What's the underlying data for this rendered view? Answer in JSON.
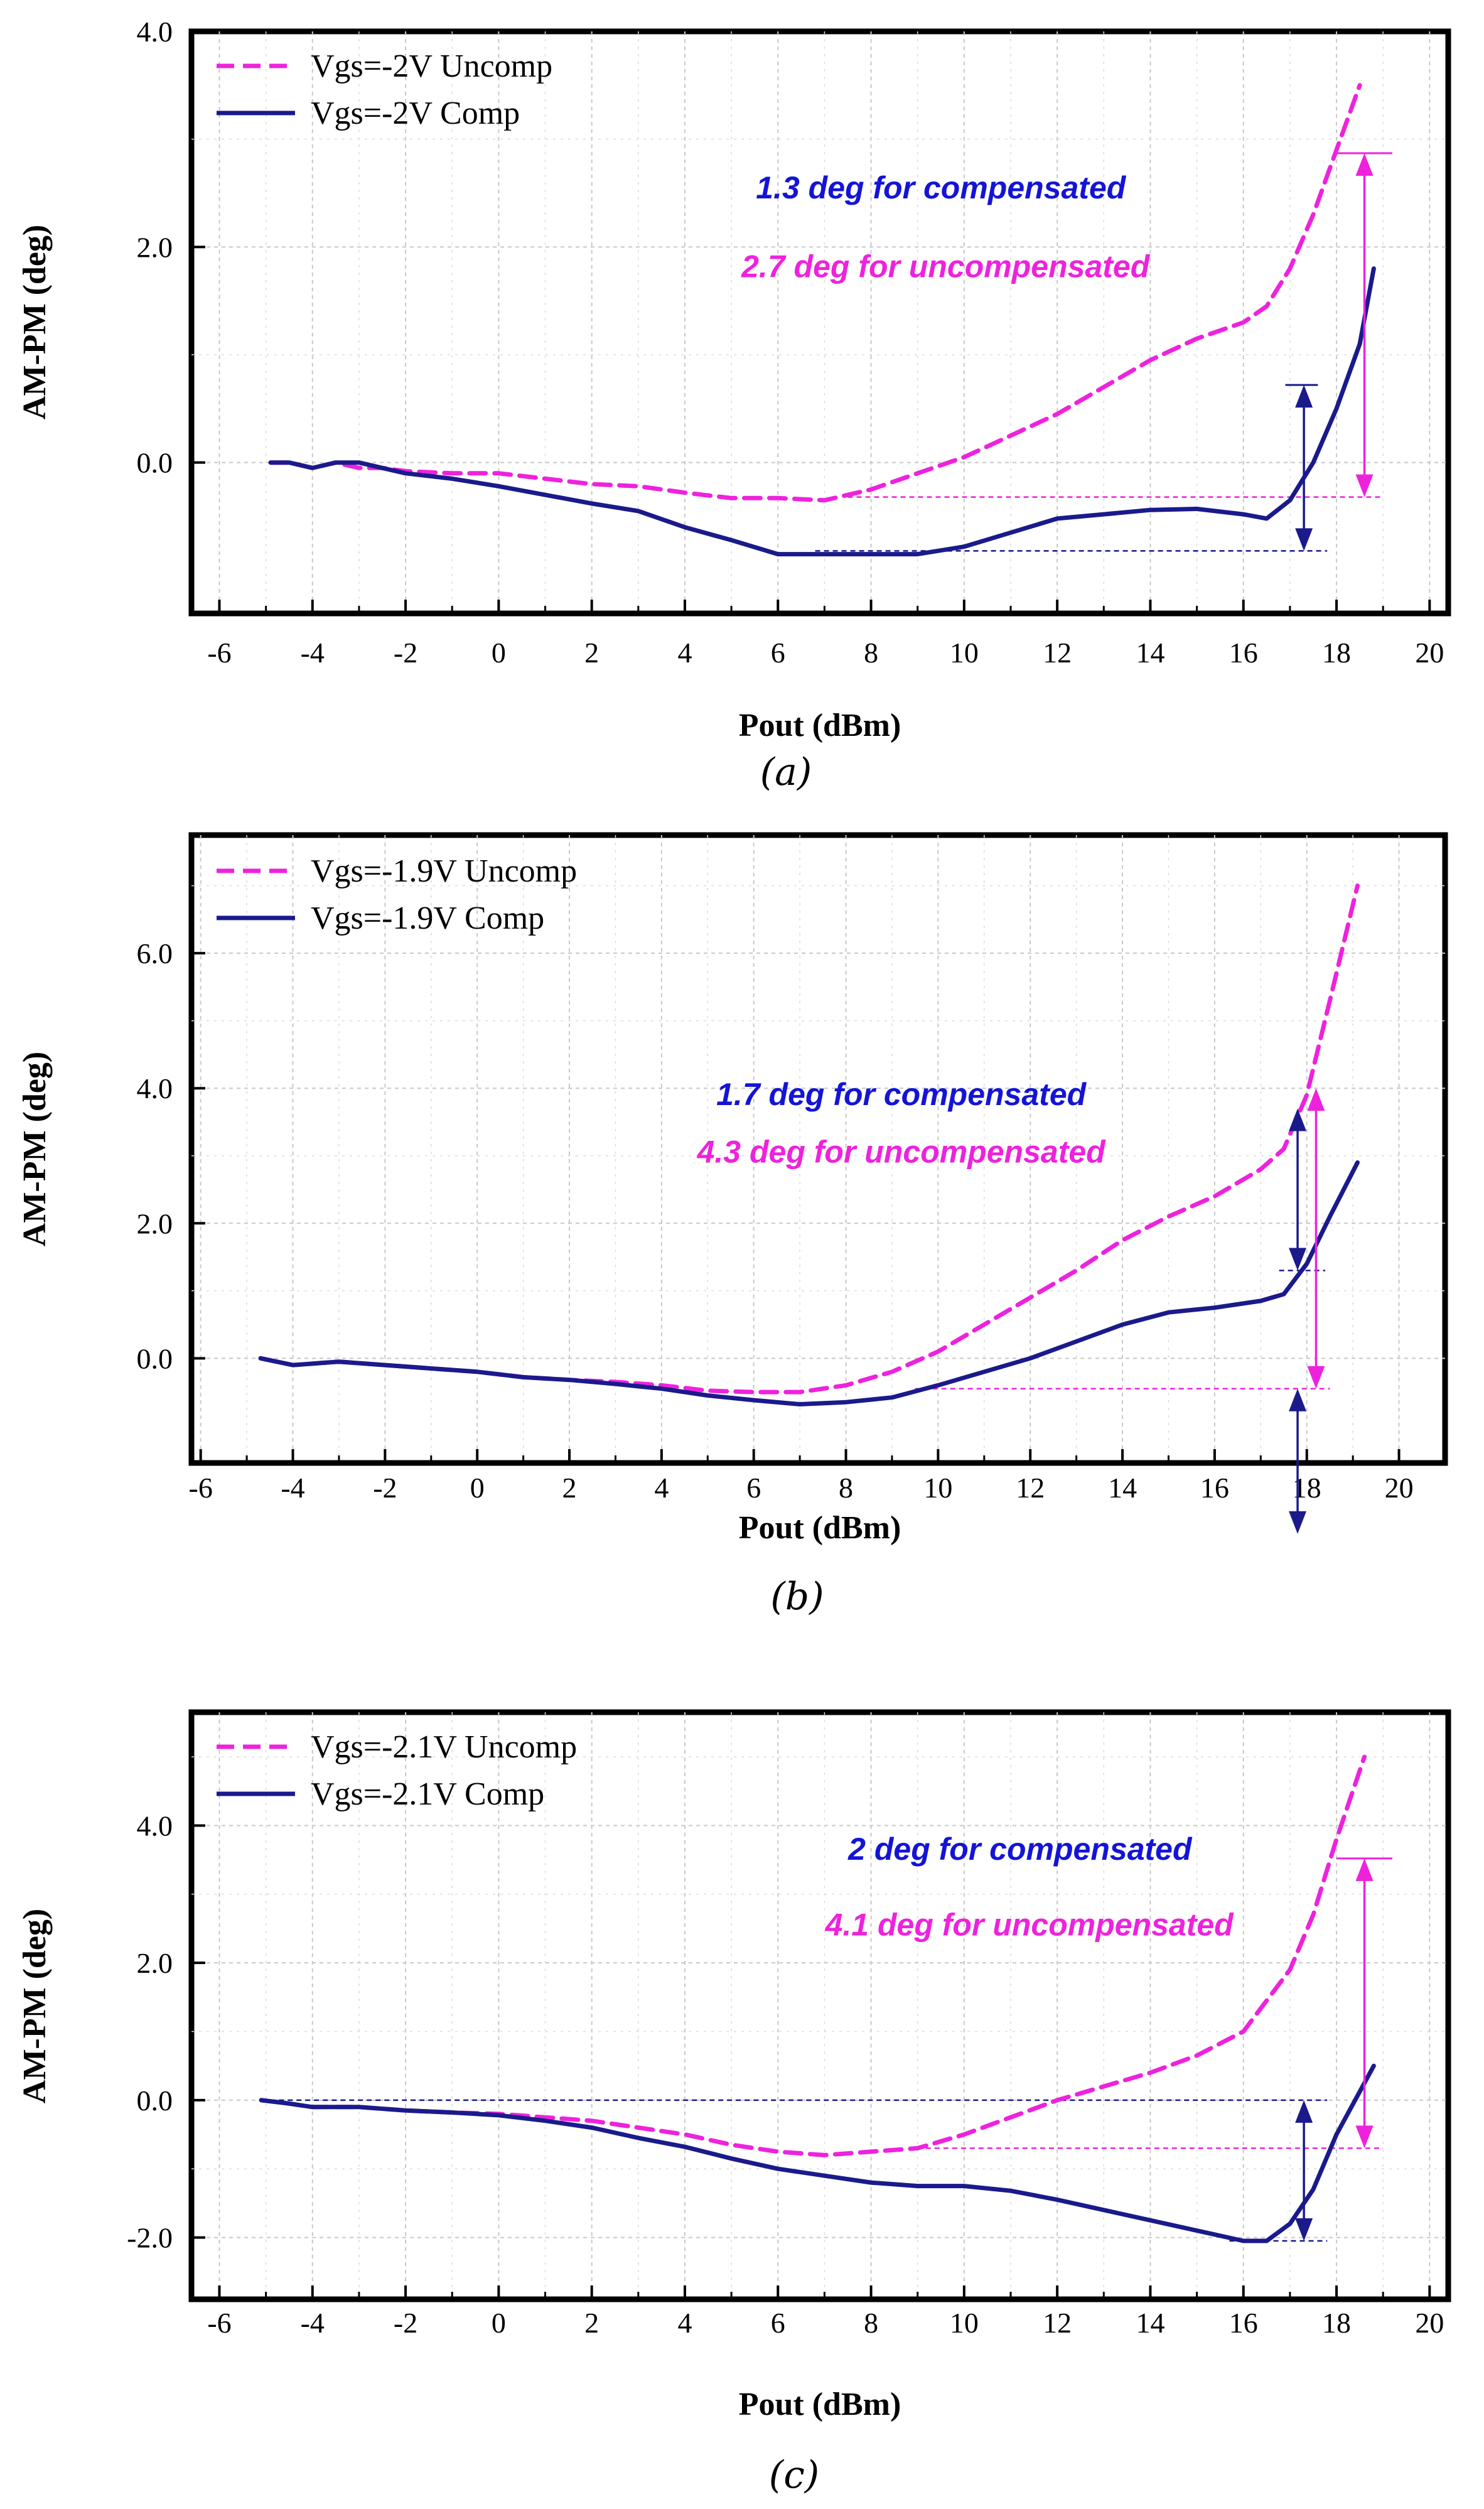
{
  "chart_data": [
    {
      "type": "line",
      "caption": "(a)",
      "xlabel": "Pout (dBm)",
      "ylabel": "AM-PM (deg)",
      "xlim": [
        -6.6,
        20.4
      ],
      "ylim": [
        -1.4,
        4.0
      ],
      "xticks": [
        -6,
        -4,
        -2,
        0,
        2,
        4,
        6,
        8,
        10,
        12,
        14,
        16,
        18,
        20
      ],
      "xtick_labels": [
        "-6",
        "-4",
        "-2",
        "0",
        "2",
        "4",
        "6",
        "8",
        "10",
        "12",
        "14",
        "16",
        "18",
        "20"
      ],
      "yticks": [
        0.0,
        2.0,
        4.0
      ],
      "ytick_labels": [
        "0.0",
        "2.0",
        "4.0"
      ],
      "grid": true,
      "legend_position": "top-left",
      "colors": {
        "uncomp": "#ee22dd",
        "comp": "#1a1a8c",
        "annot_comp": "#1414d6",
        "annot_uncomp": "#ee22dd"
      },
      "series": [
        {
          "name": "Vgs=-2V Uncomp",
          "style": "dashed",
          "x": [
            -4.9,
            -4.5,
            -4,
            -3.5,
            -3,
            -2.5,
            -2,
            -1,
            0,
            1,
            2,
            3,
            4,
            5,
            6,
            7,
            8,
            9,
            10,
            11,
            12,
            13,
            14,
            15,
            16,
            16.5,
            17,
            17.5,
            18,
            18.5
          ],
          "y": [
            0.0,
            0.0,
            -0.05,
            0.0,
            -0.05,
            -0.05,
            -0.08,
            -0.1,
            -0.1,
            -0.15,
            -0.2,
            -0.22,
            -0.28,
            -0.33,
            -0.33,
            -0.35,
            -0.25,
            -0.1,
            0.05,
            0.25,
            0.45,
            0.7,
            0.95,
            1.15,
            1.3,
            1.45,
            1.8,
            2.3,
            2.9,
            3.5
          ]
        },
        {
          "name": "Vgs=-2V Comp",
          "style": "solid",
          "x": [
            -4.9,
            -4.5,
            -4,
            -3.5,
            -3,
            -2.5,
            -2,
            -1,
            0,
            1,
            2,
            3,
            4,
            5,
            6,
            7,
            8,
            9,
            10,
            11,
            12,
            13,
            14,
            15,
            16,
            16.5,
            17,
            17.5,
            18,
            18.5,
            18.8
          ],
          "y": [
            0.0,
            0.0,
            -0.05,
            0.0,
            0.0,
            -0.05,
            -0.1,
            -0.15,
            -0.22,
            -0.3,
            -0.38,
            -0.45,
            -0.6,
            -0.72,
            -0.85,
            -0.85,
            -0.85,
            -0.85,
            -0.78,
            -0.65,
            -0.52,
            -0.48,
            -0.44,
            -0.43,
            -0.48,
            -0.52,
            -0.35,
            0.0,
            0.5,
            1.1,
            1.8
          ]
        }
      ],
      "ref_lines": [
        {
          "color": "comp",
          "y": -0.82,
          "x_from": 6.8,
          "x_to": 17.8
        },
        {
          "color": "uncomp",
          "y": -0.32,
          "x_from": 7.5,
          "x_to": 19.0
        }
      ],
      "arrows": [
        {
          "color": "comp",
          "x": 17.3,
          "y_from": -0.82,
          "y_to": 0.72,
          "cap_x_from": 16.9,
          "cap_x_to": 17.6
        },
        {
          "color": "uncomp",
          "x": 18.6,
          "y_from": -0.32,
          "y_to": 2.87,
          "cap_x_from": 18.0,
          "cap_x_to": 19.2
        }
      ],
      "annotations": [
        {
          "text": "1.3 deg for compensated",
          "color": "annot_comp",
          "x": 9.5,
          "y": 2.45
        },
        {
          "text": "2.7 deg for uncompensated",
          "color": "annot_uncomp",
          "x": 9.6,
          "y": 1.72
        }
      ]
    },
    {
      "type": "line",
      "caption": "(b)",
      "xlabel": "Pout (dBm)",
      "ylabel": "AM-PM (deg)",
      "xlim": [
        -6.2,
        21.0
      ],
      "ylim": [
        -1.55,
        7.75
      ],
      "xticks": [
        -6,
        -4,
        -2,
        0,
        2,
        4,
        6,
        8,
        10,
        12,
        14,
        16,
        18,
        20
      ],
      "xtick_labels": [
        "-6",
        "-4",
        "-2",
        "0",
        "2",
        "4",
        "6",
        "8",
        "10",
        "12",
        "14",
        "16",
        "18",
        "20"
      ],
      "yticks": [
        0.0,
        2.0,
        4.0,
        6.0
      ],
      "ytick_labels": [
        "0.0",
        "2.0",
        "4.0",
        "6.0"
      ],
      "grid": true,
      "legend_position": "top-left",
      "colors": {
        "uncomp": "#ee22dd",
        "comp": "#1a1a8c",
        "annot_comp": "#1414d6",
        "annot_uncomp": "#ee22dd"
      },
      "series": [
        {
          "name": "Vgs=-1.9V Uncomp",
          "style": "dashed",
          "x": [
            -4.7,
            -4,
            -3,
            -2,
            -1,
            0,
            1,
            2,
            3,
            4,
            5,
            6,
            7,
            8,
            9,
            10,
            11,
            12,
            13,
            14,
            15,
            16,
            17,
            17.5,
            18,
            18.5,
            19.1
          ],
          "y": [
            0.0,
            -0.1,
            -0.05,
            -0.1,
            -0.15,
            -0.2,
            -0.28,
            -0.32,
            -0.35,
            -0.4,
            -0.48,
            -0.5,
            -0.5,
            -0.4,
            -0.2,
            0.1,
            0.5,
            0.9,
            1.3,
            1.75,
            2.1,
            2.4,
            2.8,
            3.1,
            3.9,
            5.3,
            7.0
          ]
        },
        {
          "name": "Vgs=-1.9V Comp",
          "style": "solid",
          "x": [
            -4.7,
            -4,
            -3,
            -2,
            -1,
            0,
            1,
            2,
            3,
            4,
            5,
            6,
            7,
            8,
            9,
            10,
            11,
            12,
            13,
            14,
            15,
            16,
            17,
            17.5,
            18,
            18.5,
            19.1
          ],
          "y": [
            0.0,
            -0.1,
            -0.05,
            -0.1,
            -0.15,
            -0.2,
            -0.28,
            -0.32,
            -0.38,
            -0.45,
            -0.55,
            -0.62,
            -0.68,
            -0.65,
            -0.58,
            -0.4,
            -0.2,
            0.0,
            0.25,
            0.5,
            0.68,
            0.75,
            0.85,
            0.95,
            1.4,
            2.1,
            2.9
          ]
        }
      ],
      "ref_lines": [
        {
          "color": "comp",
          "y": 1.3,
          "x_from": 17.4,
          "x_to": 18.4
        },
        {
          "color": "uncomp",
          "y": -0.45,
          "x_from": 9.5,
          "x_to": 18.5
        }
      ],
      "arrows": [
        {
          "color": "comp",
          "x": 17.8,
          "y_from": 1.3,
          "y_to": 3.7,
          "cap_x_from": null,
          "cap_x_to": null
        },
        {
          "color": "uncomp",
          "x": 18.2,
          "y_from": -0.45,
          "y_to": 4.0,
          "cap_x_from": null,
          "cap_x_to": null
        },
        {
          "color": "comp",
          "x": 17.8,
          "y_from": -2.6,
          "y_to": -0.45,
          "cap_x_from": null,
          "cap_x_to": null
        }
      ],
      "annotations": [
        {
          "text": "1.7 deg for compensated",
          "color": "annot_comp",
          "x": 9.2,
          "y": 3.75
        },
        {
          "text": "4.3 deg for uncompensated",
          "color": "annot_uncomp",
          "x": 9.2,
          "y": 2.9
        }
      ]
    },
    {
      "type": "line",
      "caption": "(c)",
      "xlabel": "Pout (dBm)",
      "ylabel": "AM-PM (deg)",
      "xlim": [
        -6.6,
        20.4
      ],
      "ylim": [
        -2.9,
        5.65
      ],
      "xticks": [
        -6,
        -4,
        -2,
        0,
        2,
        4,
        6,
        8,
        10,
        12,
        14,
        16,
        18,
        20
      ],
      "xtick_labels": [
        "-6",
        "-4",
        "-2",
        "0",
        "2",
        "4",
        "6",
        "8",
        "10",
        "12",
        "14",
        "16",
        "18",
        "20"
      ],
      "yticks": [
        -2.0,
        0.0,
        2.0,
        4.0
      ],
      "ytick_labels": [
        "-2.0",
        "0.0",
        "2.0",
        "4.0"
      ],
      "grid": true,
      "legend_position": "top-left",
      "colors": {
        "uncomp": "#ee22dd",
        "comp": "#1a1a8c",
        "annot_comp": "#1414d6",
        "annot_uncomp": "#ee22dd"
      },
      "series": [
        {
          "name": "Vgs=-2.1V Uncomp",
          "style": "dashed",
          "x": [
            -5.1,
            -4.5,
            -4,
            -3,
            -2,
            -1,
            0,
            1,
            2,
            3,
            4,
            5,
            6,
            7,
            8,
            9,
            10,
            11,
            12,
            13,
            14,
            15,
            16,
            17,
            17.5,
            18,
            18.6
          ],
          "y": [
            0.0,
            -0.05,
            -0.1,
            -0.1,
            -0.15,
            -0.18,
            -0.2,
            -0.25,
            -0.3,
            -0.4,
            -0.5,
            -0.65,
            -0.75,
            -0.8,
            -0.75,
            -0.7,
            -0.5,
            -0.25,
            0.0,
            0.2,
            0.4,
            0.65,
            1.0,
            1.9,
            2.7,
            3.8,
            5.0
          ]
        },
        {
          "name": "Vgs=-2.1V Comp",
          "style": "solid",
          "x": [
            -5.1,
            -4.5,
            -4,
            -3,
            -2,
            -1,
            0,
            1,
            2,
            3,
            4,
            5,
            6,
            7,
            8,
            9,
            10,
            11,
            12,
            13,
            14,
            15,
            16,
            16.5,
            17,
            17.5,
            18,
            18.8
          ],
          "y": [
            0.0,
            -0.05,
            -0.1,
            -0.1,
            -0.15,
            -0.18,
            -0.22,
            -0.3,
            -0.4,
            -0.55,
            -0.68,
            -0.85,
            -1.0,
            -1.1,
            -1.2,
            -1.25,
            -1.25,
            -1.32,
            -1.45,
            -1.6,
            -1.75,
            -1.9,
            -2.05,
            -2.05,
            -1.8,
            -1.3,
            -0.5,
            0.5
          ]
        }
      ],
      "ref_lines": [
        {
          "color": "comp",
          "y": 0.0,
          "x_from": -5.1,
          "x_to": 17.8
        },
        {
          "color": "comp",
          "y": -2.05,
          "x_from": 15.7,
          "x_to": 17.8
        },
        {
          "color": "uncomp",
          "y": -0.7,
          "x_from": 8.8,
          "x_to": 19.0
        }
      ],
      "arrows": [
        {
          "color": "comp",
          "x": 17.3,
          "y_from": -2.05,
          "y_to": 0.0,
          "cap_x_from": null,
          "cap_x_to": null
        },
        {
          "color": "uncomp",
          "x": 18.6,
          "y_from": -0.7,
          "y_to": 3.52,
          "cap_x_from": 18.0,
          "cap_x_to": 19.2
        }
      ],
      "annotations": [
        {
          "text": "2 deg for compensated",
          "color": "annot_comp",
          "x": 11.2,
          "y": 3.5
        },
        {
          "text": "4.1 deg for uncompensated",
          "color": "annot_uncomp",
          "x": 11.4,
          "y": 2.4
        }
      ]
    }
  ]
}
